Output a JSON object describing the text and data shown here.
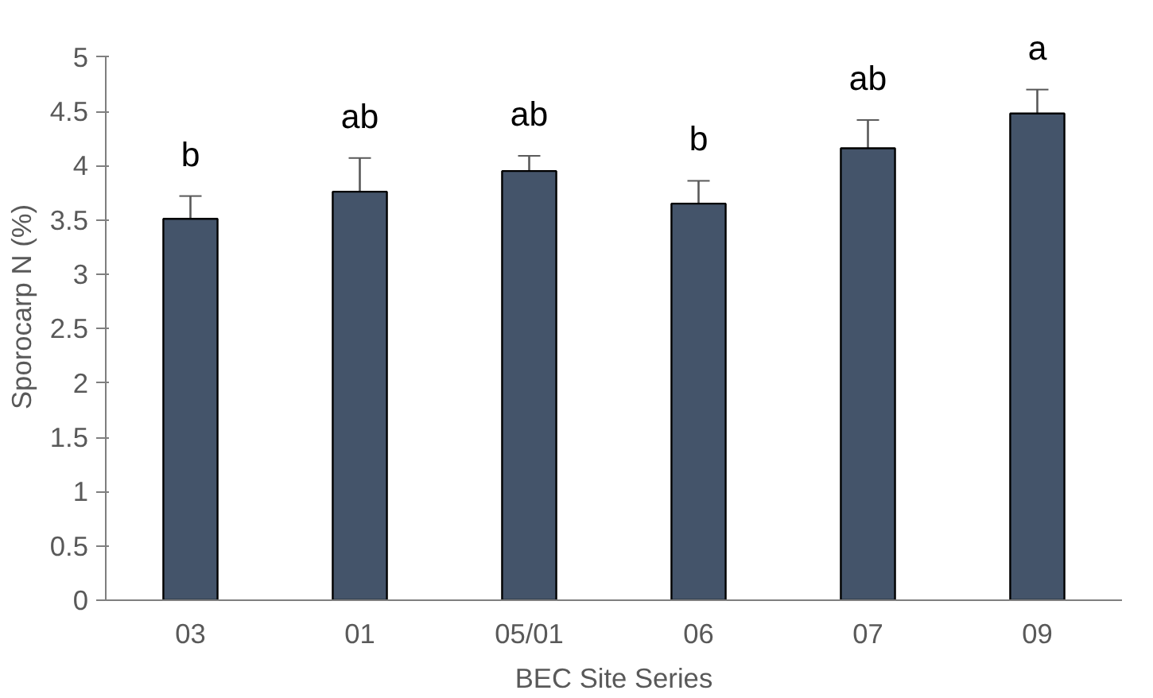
{
  "chart_data": {
    "type": "bar",
    "xlabel": "BEC Site Series",
    "ylabel": "Sporocarp N (%)",
    "categories": [
      "03",
      "01",
      "05/01",
      "06",
      "07",
      "09"
    ],
    "series": [
      {
        "color": "#44546a",
        "values": [
          3.51,
          3.76,
          3.95,
          3.65,
          4.16,
          4.48
        ],
        "errors": [
          0.21,
          0.31,
          0.14,
          0.21,
          0.26,
          0.22
        ]
      }
    ],
    "ylim": [
      0,
      5
    ],
    "yticks": [
      0,
      0.5,
      1,
      1.5,
      2,
      2.5,
      3,
      3.5,
      4,
      4.5,
      5
    ],
    "grid": false,
    "annotations": [
      "b",
      "ab",
      "ab",
      "b",
      "ab",
      "a"
    ]
  }
}
